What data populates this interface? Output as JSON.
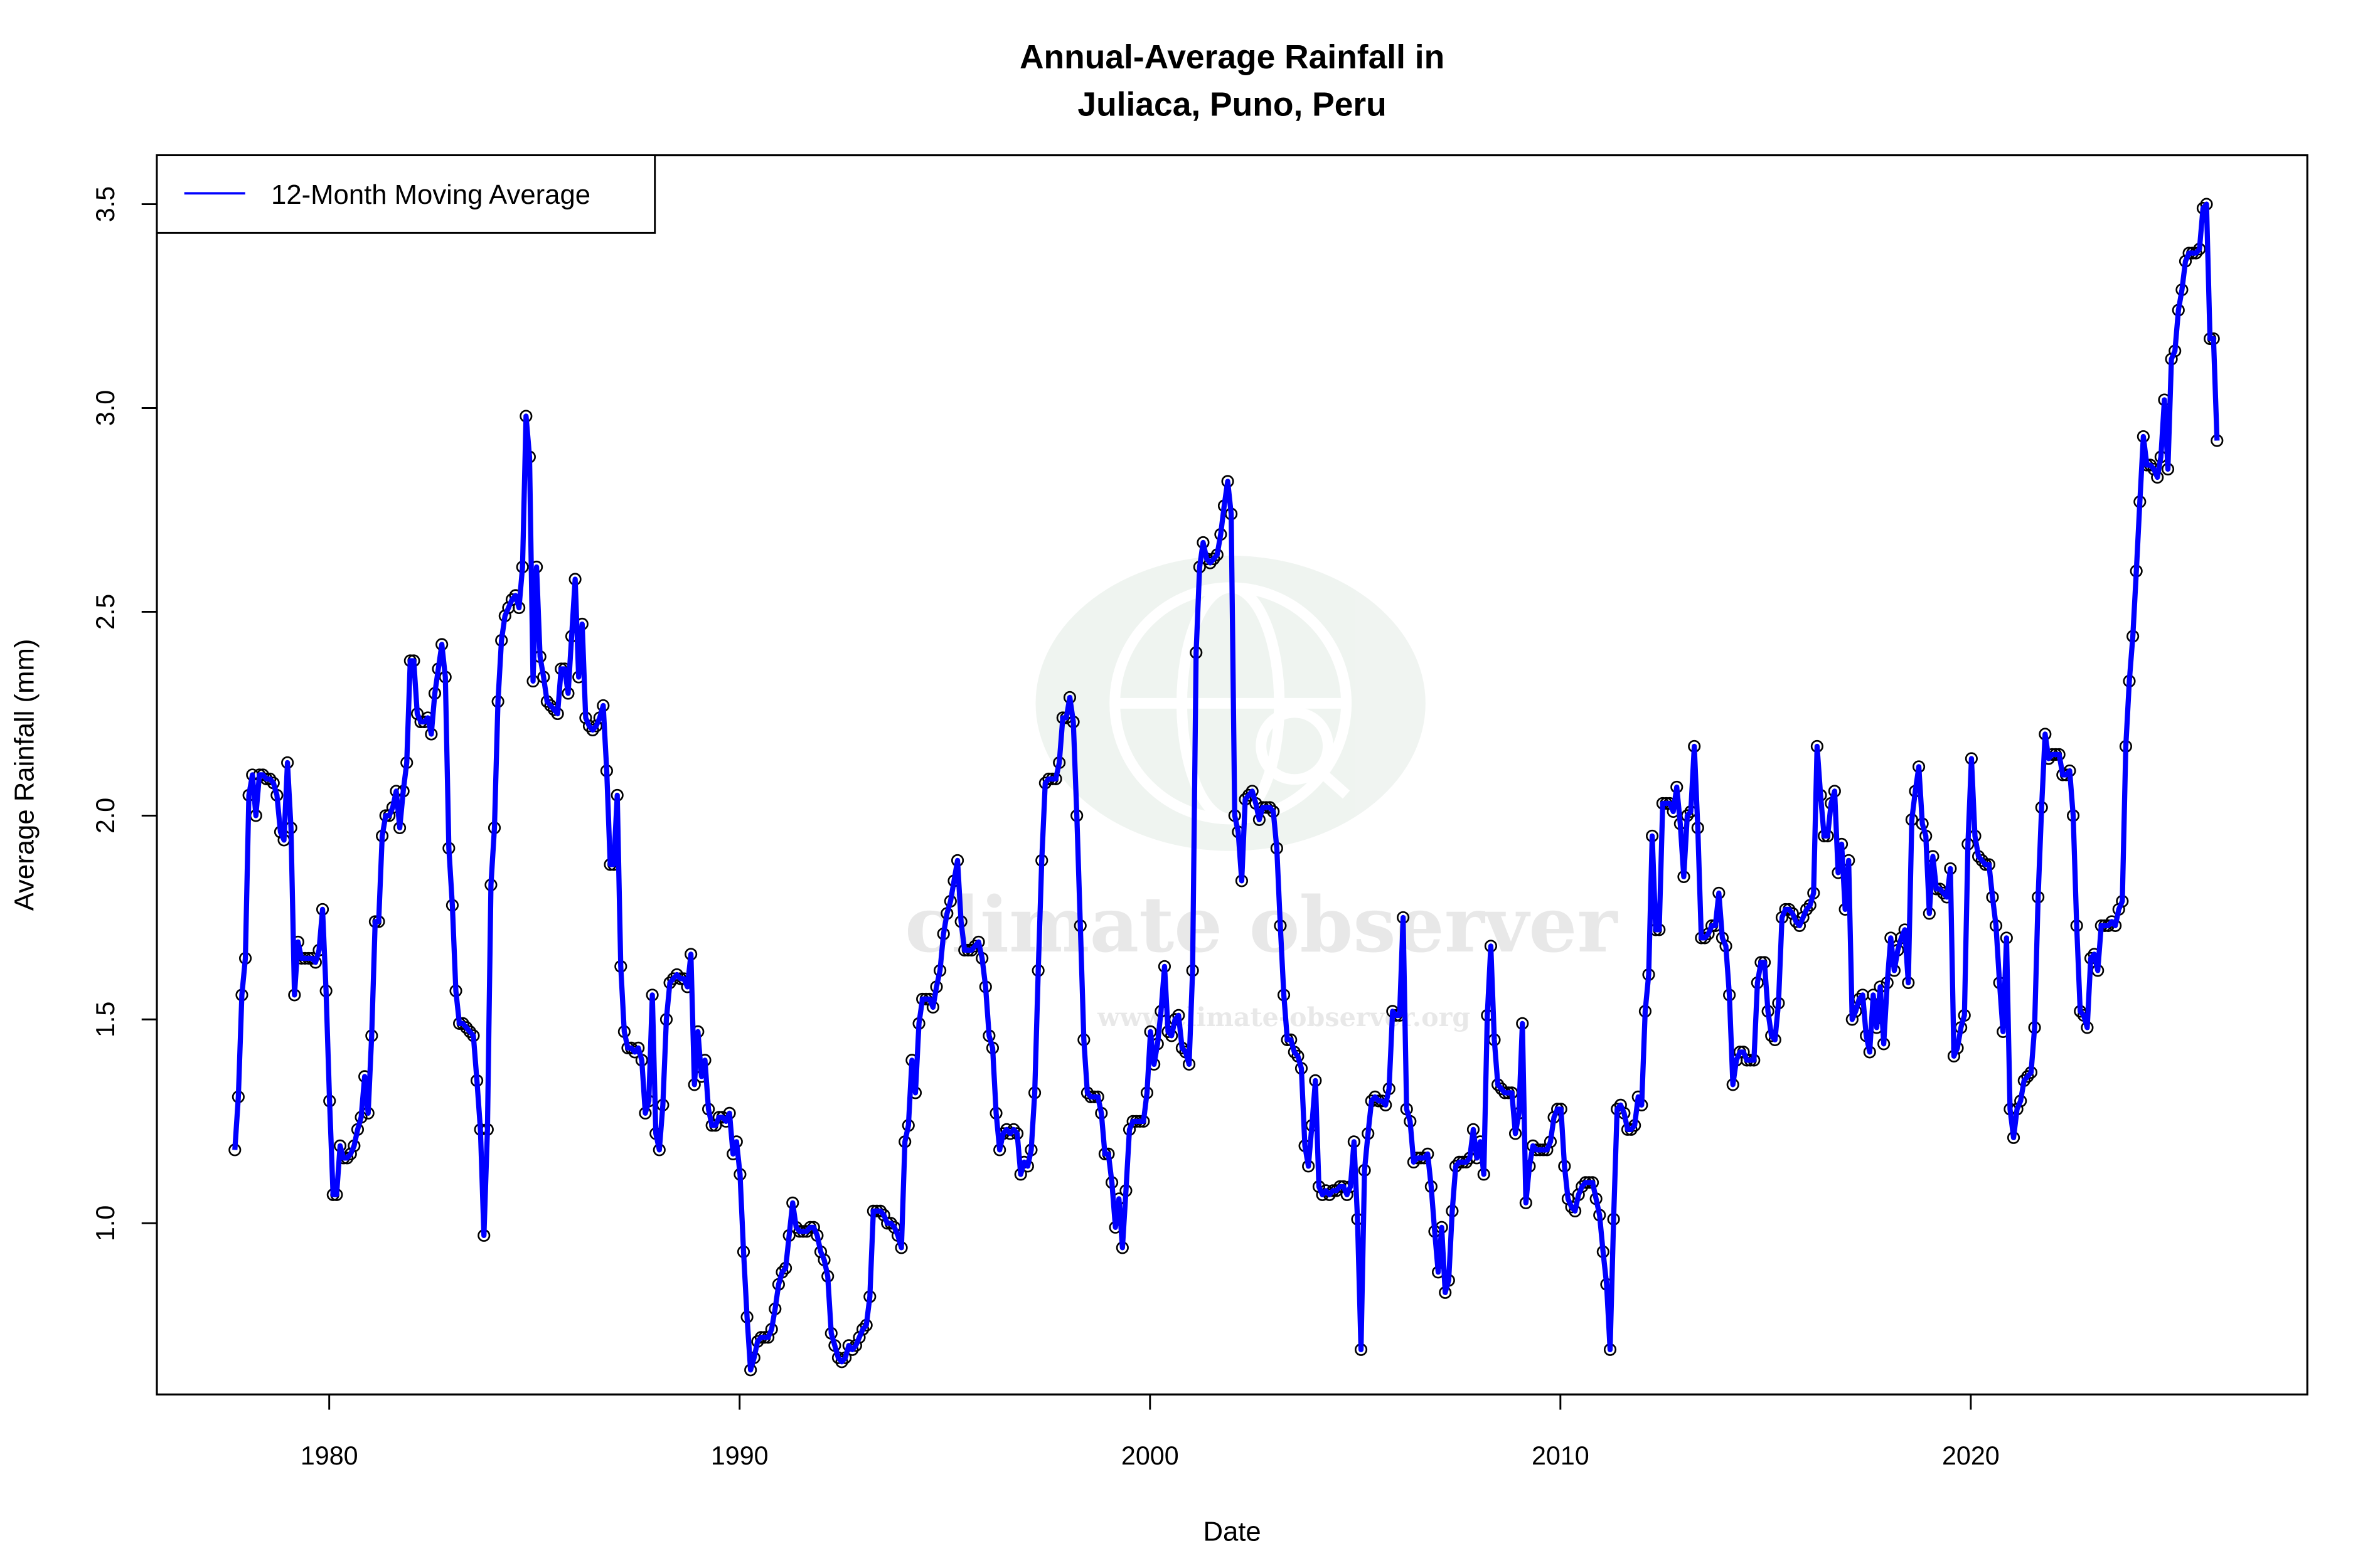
{
  "chart_data": {
    "type": "line",
    "title": [
      "Annual-Average Rainfall in",
      "Juliaca, Puno, Peru"
    ],
    "xlabel": "Date",
    "ylabel": "Average Rainfall (mm)",
    "xlim": [
      1975.8,
      2028.2
    ],
    "ylim": [
      0.58,
      3.62
    ],
    "x_ticks": [
      1980,
      1990,
      2000,
      2010,
      2020
    ],
    "y_ticks": [
      "1.0",
      "1.5",
      "2.0",
      "2.5",
      "3.0",
      "3.5"
    ],
    "grid": false,
    "legend": {
      "placement": "top-left",
      "entries": [
        "12-Month Moving Average"
      ]
    },
    "markers": "open-circle",
    "series": [
      {
        "name": "12-Month Moving Average",
        "color": "#0000FF",
        "x_first": 1977.7,
        "x_last": 2026.0,
        "values": [
          1.18,
          1.31,
          1.56,
          1.65,
          2.05,
          2.1,
          2.0,
          2.1,
          2.1,
          2.09,
          2.09,
          2.08,
          2.05,
          1.96,
          1.94,
          2.13,
          1.97,
          1.56,
          1.69,
          1.65,
          1.65,
          1.65,
          1.65,
          1.64,
          1.67,
          1.77,
          1.57,
          1.3,
          1.07,
          1.07,
          1.19,
          1.16,
          1.16,
          1.17,
          1.19,
          1.23,
          1.26,
          1.36,
          1.27,
          1.46,
          1.74,
          1.74,
          1.95,
          2.0,
          2.0,
          2.02,
          2.06,
          1.97,
          2.06,
          2.13,
          2.38,
          2.38,
          2.25,
          2.23,
          2.23,
          2.24,
          2.2,
          2.3,
          2.36,
          2.42,
          2.34,
          1.92,
          1.78,
          1.57,
          1.49,
          1.49,
          1.48,
          1.47,
          1.46,
          1.35,
          1.23,
          0.97,
          1.23,
          1.83,
          1.97,
          2.28,
          2.43,
          2.49,
          2.51,
          2.53,
          2.54,
          2.51,
          2.61,
          2.98,
          2.88,
          2.33,
          2.61,
          2.39,
          2.34,
          2.28,
          2.27,
          2.26,
          2.25,
          2.36,
          2.36,
          2.3,
          2.44,
          2.58,
          2.34,
          2.47,
          2.24,
          2.22,
          2.21,
          2.22,
          2.24,
          2.27,
          2.11,
          1.88,
          1.88,
          2.05,
          1.63,
          1.47,
          1.43,
          1.43,
          1.42,
          1.43,
          1.4,
          1.27,
          1.3,
          1.56,
          1.22,
          1.18,
          1.29,
          1.5,
          1.59,
          1.6,
          1.61,
          1.6,
          1.6,
          1.58,
          1.66,
          1.34,
          1.47,
          1.36,
          1.4,
          1.28,
          1.24,
          1.24,
          1.26,
          1.26,
          1.25,
          1.27,
          1.17,
          1.2,
          1.12,
          0.93,
          0.77,
          0.64,
          0.67,
          0.71,
          0.72,
          0.72,
          0.72,
          0.74,
          0.79,
          0.85,
          0.88,
          0.89,
          0.97,
          1.05,
          0.99,
          0.98,
          0.98,
          0.98,
          0.99,
          0.99,
          0.97,
          0.93,
          0.91,
          0.87,
          0.73,
          0.7,
          0.67,
          0.66,
          0.67,
          0.7,
          0.69,
          0.7,
          0.72,
          0.74,
          0.75,
          0.82,
          1.03,
          1.03,
          1.03,
          1.02,
          1.0,
          1.0,
          0.99,
          0.97,
          0.94,
          1.2,
          1.24,
          1.4,
          1.32,
          1.49,
          1.55,
          1.55,
          1.55,
          1.53,
          1.58,
          1.62,
          1.71,
          1.76,
          1.79,
          1.84,
          1.89,
          1.74,
          1.67,
          1.67,
          1.67,
          1.68,
          1.69,
          1.65,
          1.58,
          1.46,
          1.43,
          1.27,
          1.18,
          1.22,
          1.23,
          1.22,
          1.23,
          1.22,
          1.12,
          1.15,
          1.14,
          1.18,
          1.32,
          1.62,
          1.89,
          2.08,
          2.09,
          2.09,
          2.09,
          2.13,
          2.24,
          2.24,
          2.29,
          2.23,
          2.0,
          1.73,
          1.45,
          1.32,
          1.31,
          1.31,
          1.31,
          1.27,
          1.17,
          1.17,
          1.1,
          0.99,
          1.06,
          0.94,
          1.08,
          1.23,
          1.25,
          1.25,
          1.25,
          1.25,
          1.32,
          1.47,
          1.39,
          1.44,
          1.52,
          1.63,
          1.47,
          1.46,
          1.5,
          1.51,
          1.43,
          1.42,
          1.39,
          1.62,
          2.4,
          2.61,
          2.67,
          2.63,
          2.62,
          2.63,
          2.64,
          2.69,
          2.76,
          2.82,
          2.74,
          2.0,
          1.96,
          1.84,
          2.04,
          2.05,
          2.06,
          2.03,
          1.99,
          2.02,
          2.02,
          2.02,
          2.01,
          1.92,
          1.73,
          1.56,
          1.45,
          1.45,
          1.42,
          1.41,
          1.38,
          1.19,
          1.14,
          1.24,
          1.35,
          1.09,
          1.07,
          1.08,
          1.07,
          1.08,
          1.08,
          1.09,
          1.09,
          1.07,
          1.09,
          1.2,
          1.01,
          0.69,
          1.13,
          1.22,
          1.3,
          1.31,
          1.3,
          1.3,
          1.29,
          1.33,
          1.52,
          1.51,
          1.51,
          1.75,
          1.28,
          1.25,
          1.15,
          1.16,
          1.16,
          1.16,
          1.17,
          1.09,
          0.98,
          0.88,
          0.99,
          0.83,
          0.86,
          1.03,
          1.14,
          1.15,
          1.15,
          1.15,
          1.16,
          1.23,
          1.16,
          1.2,
          1.12,
          1.51,
          1.68,
          1.45,
          1.34,
          1.33,
          1.32,
          1.32,
          1.32,
          1.22,
          1.27,
          1.49,
          1.05,
          1.14,
          1.19,
          1.18,
          1.18,
          1.18,
          1.18,
          1.2,
          1.26,
          1.28,
          1.28,
          1.14,
          1.06,
          1.04,
          1.03,
          1.07,
          1.09,
          1.1,
          1.1,
          1.1,
          1.06,
          1.02,
          0.93,
          0.85,
          0.69,
          1.01,
          1.28,
          1.29,
          1.27,
          1.23,
          1.23,
          1.24,
          1.31,
          1.29,
          1.52,
          1.61,
          1.95,
          1.72,
          1.72,
          2.03,
          2.03,
          2.03,
          2.01,
          2.07,
          1.98,
          1.85,
          2.0,
          2.01,
          2.17,
          1.97,
          1.7,
          1.7,
          1.71,
          1.73,
          1.73,
          1.81,
          1.7,
          1.68,
          1.56,
          1.34,
          1.4,
          1.42,
          1.42,
          1.4,
          1.4,
          1.4,
          1.59,
          1.64,
          1.64,
          1.52,
          1.46,
          1.45,
          1.54,
          1.75,
          1.77,
          1.77,
          1.76,
          1.74,
          1.73,
          1.75,
          1.77,
          1.78,
          1.81,
          2.17,
          2.05,
          1.95,
          1.95,
          2.03,
          2.06,
          1.86,
          1.93,
          1.77,
          1.89,
          1.5,
          1.52,
          1.55,
          1.56,
          1.46,
          1.42,
          1.56,
          1.48,
          1.58,
          1.44,
          1.59,
          1.7,
          1.62,
          1.67,
          1.7,
          1.72,
          1.59,
          1.99,
          2.06,
          2.12,
          1.98,
          1.95,
          1.76,
          1.9,
          1.82,
          1.82,
          1.81,
          1.8,
          1.87,
          1.41,
          1.43,
          1.48,
          1.51,
          1.93,
          2.14,
          1.95,
          1.9,
          1.89,
          1.88,
          1.88,
          1.8,
          1.73,
          1.59,
          1.47,
          1.7,
          1.28,
          1.21,
          1.28,
          1.3,
          1.35,
          1.36,
          1.37,
          1.48,
          1.8,
          2.02,
          2.2,
          2.14,
          2.15,
          2.15,
          2.15,
          2.1,
          2.1,
          2.11,
          2.0,
          1.73,
          1.52,
          1.51,
          1.48,
          1.65,
          1.66,
          1.62,
          1.73,
          1.73,
          1.73,
          1.74,
          1.73,
          1.77,
          1.79,
          2.17,
          2.33,
          2.44,
          2.6,
          2.77,
          2.93,
          2.86,
          2.86,
          2.85,
          2.83,
          2.88,
          3.02,
          2.85,
          3.12,
          3.14,
          3.24,
          3.29,
          3.36,
          3.38,
          3.38,
          3.38,
          3.39,
          3.49,
          3.5,
          3.17,
          3.17,
          2.92
        ]
      }
    ]
  },
  "watermark": {
    "name": "climate observer",
    "url": "www.climate-observer.org",
    "color": "#EEF3EF"
  }
}
